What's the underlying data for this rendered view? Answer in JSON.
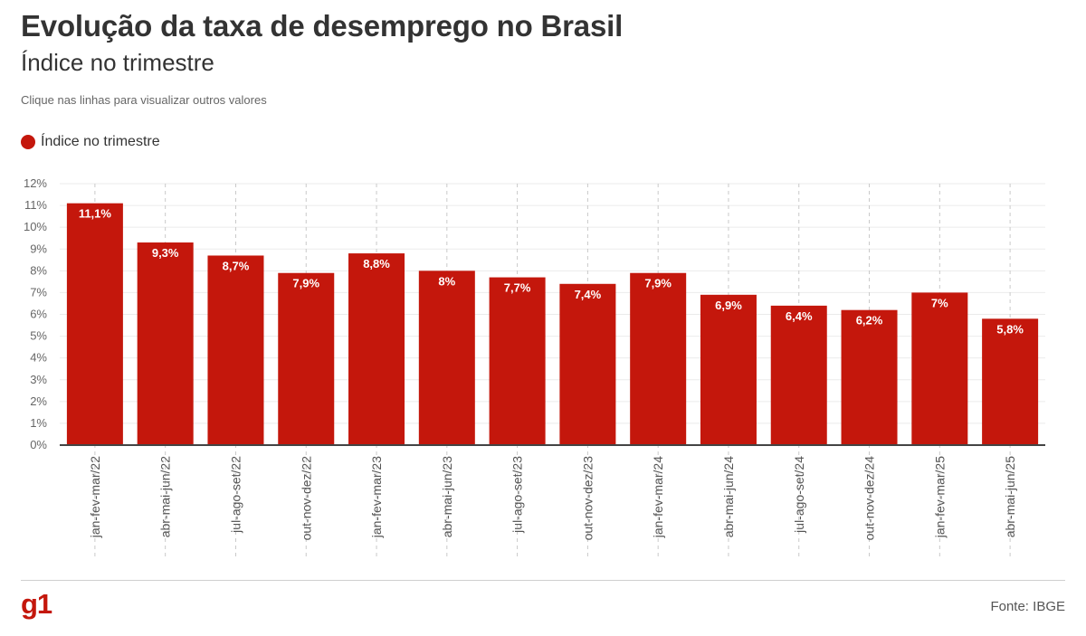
{
  "header": {
    "title": "Evolução da taxa de desemprego no Brasil",
    "subtitle": "Índice no trimestre",
    "hint": "Clique nas linhas para visualizar outros valores"
  },
  "legend": {
    "label": "Índice no trimestre",
    "color": "#c4170c"
  },
  "chart_data": {
    "type": "bar",
    "categories": [
      "jan-fev-mar/22",
      "abr-mai-jun/22",
      "jul-ago-set/22",
      "out-nov-dez/22",
      "jan-fev-mar/23",
      "abr-mai-jun/23",
      "jul-ago-set/23",
      "out-nov-dez/23",
      "jan-fev-mar/24",
      "abr-mai-jun/24",
      "jul-ago-set/24",
      "out-nov-dez/24",
      "jan-fev-mar/25",
      "abr-mai-jun/25"
    ],
    "series": [
      {
        "name": "Índice no trimestre",
        "values": [
          11.1,
          9.3,
          8.7,
          7.9,
          8.8,
          8,
          7.7,
          7.4,
          7.9,
          6.9,
          6.4,
          6.2,
          7,
          5.8
        ],
        "labels": [
          "11,1%",
          "9,3%",
          "8,7%",
          "7,9%",
          "8,8%",
          "8%",
          "7,7%",
          "7,4%",
          "7,9%",
          "6,9%",
          "6,4%",
          "6,2%",
          "7%",
          "5,8%"
        ]
      }
    ],
    "ylim": [
      0,
      12
    ],
    "yticks": [
      "0%",
      "1%",
      "2%",
      "3%",
      "4%",
      "5%",
      "6%",
      "7%",
      "8%",
      "9%",
      "10%",
      "11%",
      "12%"
    ],
    "grid": true,
    "legend_position": "top-left",
    "bar_color": "#c4170c"
  },
  "footer": {
    "logo": "g1",
    "source": "Fonte: IBGE"
  }
}
